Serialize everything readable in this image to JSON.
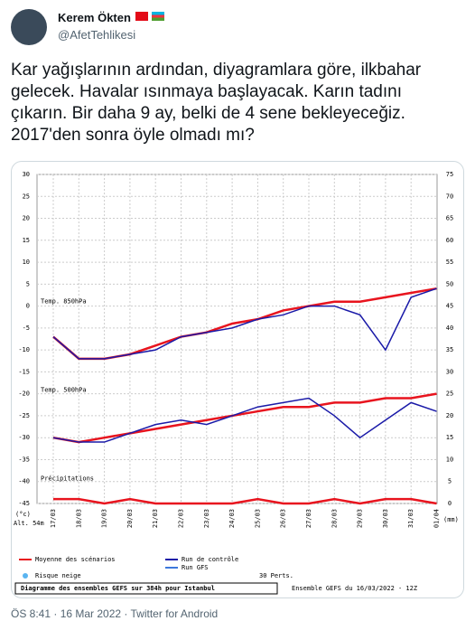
{
  "tweet": {
    "name": "Kerem Ökten",
    "handle": "@AfetTehlikesi",
    "text_lines": [
      "Kar yağışlarının ardından, diyagramlara göre, ilkbahar",
      "gelecek. Havalar ısınmaya başlayacak. Karın tadını",
      "çıkarın. Bir daha 9 ay, belki de 4 sene bekleyeceğiz.",
      "2017'den sonra öyle olmadı mı?"
    ],
    "meta": "ÖS 8:41 · 16 Mar 2022 · Twitter for Android"
  },
  "chart_data": {
    "type": "line",
    "title": "Diagramme des ensembles GEFS sur 384h pour Istanbul",
    "subtitle": "Ensemble GEFS du 16/03/2022 - 12Z",
    "y_unit": "(°c)",
    "y2_unit": "(mm)",
    "altitude": "Alt. 54m",
    "annotations": [
      "Temp. 850hPa",
      "Temp. 500hPa",
      "Précipitations"
    ],
    "legend": [
      {
        "label": "Moyenne des scénarios",
        "color": "#e8141e"
      },
      {
        "label": "Run de contrôle",
        "color": "#1a1aa8"
      },
      {
        "label": "Run GFS",
        "color": "#3c78dc"
      },
      {
        "label": "30 Perts.",
        "color": "#888888"
      },
      {
        "label": "Risque neige",
        "color": "#5ab4f0"
      }
    ],
    "categories": [
      "17/03",
      "18/03",
      "19/03",
      "20/03",
      "21/03",
      "22/03",
      "23/03",
      "24/03",
      "25/03",
      "26/03",
      "27/03",
      "28/03",
      "29/03",
      "30/03",
      "31/03",
      "01/04"
    ],
    "ylim": [
      -45,
      30
    ],
    "yticks": [
      30,
      25,
      20,
      15,
      10,
      5,
      0,
      -5,
      -10,
      -15,
      -20,
      -25,
      -30,
      -35,
      -40,
      -45
    ],
    "y2lim": [
      0,
      75
    ],
    "y2ticks": [
      75,
      70,
      65,
      60,
      55,
      50,
      45,
      40,
      35,
      30,
      25,
      20,
      15,
      10,
      5,
      0
    ],
    "grid": true,
    "series": [
      {
        "color": "#e8141e",
        "values": [
          -7,
          -12,
          -12,
          -11,
          -9,
          -7,
          -6,
          -4,
          -3,
          -1,
          0,
          1,
          1,
          2,
          3,
          4
        ]
      },
      {
        "color": "#1a1aa8",
        "values": [
          -7,
          -12,
          -12,
          -11,
          -10,
          -7,
          -6,
          -5,
          -3,
          -2,
          0,
          0,
          -2,
          -10,
          2,
          4
        ]
      },
      {
        "color": "#e8141e",
        "values": [
          -30,
          -31,
          -30,
          -29,
          -28,
          -27,
          -26,
          -25,
          -24,
          -23,
          -23,
          -22,
          -22,
          -21,
          -21,
          -20
        ]
      },
      {
        "color": "#1a1aa8",
        "values": [
          -30,
          -31,
          -31,
          -29,
          -27,
          -26,
          -27,
          -25,
          -23,
          -22,
          -21,
          -25,
          -30,
          -26,
          -22,
          -24
        ]
      },
      {
        "color": "#e8141e",
        "axis": "y2",
        "values": [
          1,
          1,
          0,
          1,
          0,
          0,
          0,
          0,
          1,
          0,
          0,
          1,
          0,
          1,
          1,
          0
        ]
      }
    ]
  }
}
